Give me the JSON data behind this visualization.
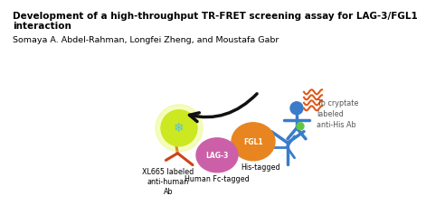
{
  "title_line1": "Development of a high-throughput TR-FRET screening assay for LAG-3/FGL1",
  "title_line2": "interaction",
  "authors": "Somaya A. Abdel-Rahman, Longfei Zheng, and Moustafa Gabr",
  "label_xl665": "XL665 labeled\nanti-human\nAb",
  "label_histagged": "His-tagged",
  "label_fctagged": "Human Fc-tagged",
  "label_tb": "Tb cryptate\nlabeled\nanti-His Ab",
  "bg_color": "#ffffff",
  "title_fontsize": 7.5,
  "author_fontsize": 6.8,
  "label_fontsize": 5.8,
  "green_color": "#cce820",
  "pink_color": "#cc60a8",
  "orange_color": "#e88520",
  "blue_color": "#3a7cc8",
  "ab_red": "#cc4418",
  "tb_blue": "#3a7cc8",
  "wavy_orange": "#e05818",
  "snowflake_color": "#50c0e0"
}
